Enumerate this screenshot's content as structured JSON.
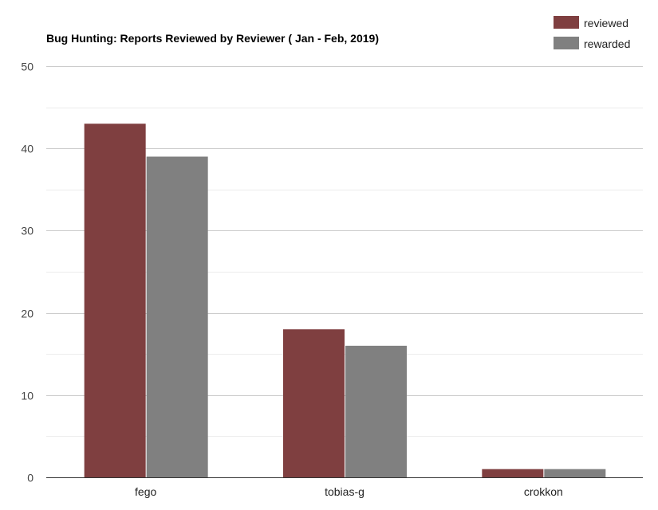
{
  "chart_data": {
    "type": "bar",
    "title": "Bug Hunting: Reports Reviewed by Reviewer ( Jan - Feb, 2019)",
    "xlabel": "",
    "ylabel": "",
    "categories": [
      "fego",
      "tobias-g",
      "crokkon"
    ],
    "series": [
      {
        "name": "reviewed",
        "values": [
          43,
          18,
          1
        ],
        "color": "#7f3f40"
      },
      {
        "name": "rewarded",
        "values": [
          39,
          16,
          1
        ],
        "color": "#808080"
      }
    ],
    "ylim": [
      0,
      50
    ],
    "yticks": [
      0,
      10,
      20,
      30,
      40,
      50
    ],
    "grid": true,
    "legend_position": "top-right"
  }
}
